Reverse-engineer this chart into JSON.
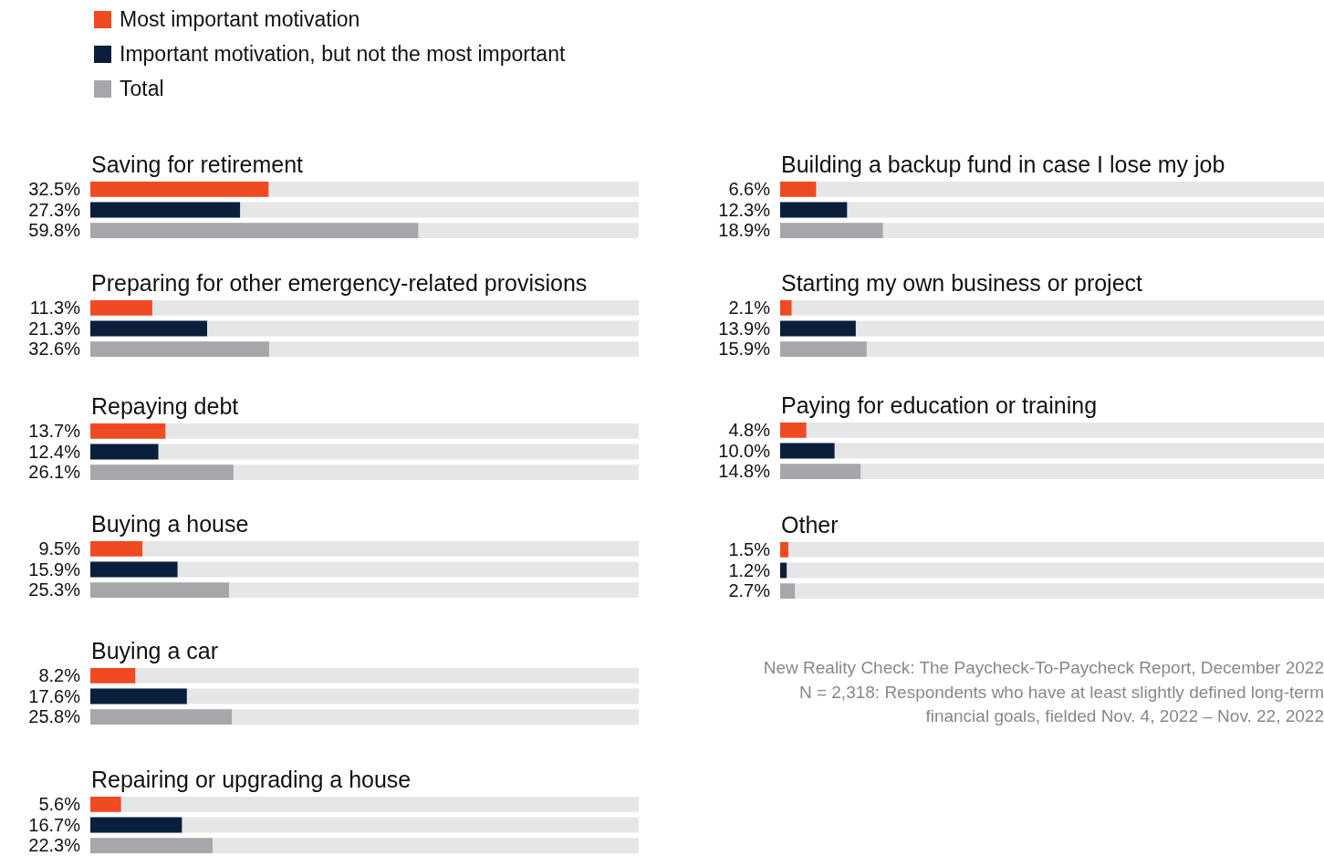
{
  "chart_data": [
    {
      "type": "bar",
      "orientation": "horizontal",
      "title": "Saving for retirement",
      "categories": [
        null
      ],
      "xlim": [
        0,
        100
      ],
      "legend": "top left",
      "series": [
        {
          "name": "Most important motivation",
          "color": "#f04a23",
          "values": [
            32.5
          ],
          "value_labels": [
            "32.5%"
          ]
        },
        {
          "name": "Important motivation, but not the most important",
          "color": "#0a1f3c",
          "values": [
            27.3
          ],
          "value_labels": [
            "27.3%"
          ]
        },
        {
          "name": "Total",
          "color": "#a7a7ab",
          "values": [
            59.8
          ],
          "value_labels": [
            "59.8%"
          ]
        }
      ]
    },
    {
      "type": "bar",
      "orientation": "horizontal",
      "title": "Building a backup fund in case I lose my job",
      "categories": [
        null
      ],
      "xlim": [
        0,
        100
      ],
      "series": [
        {
          "color": "#f04a23",
          "values": [
            6.6
          ],
          "value_labels": [
            "6.6%"
          ]
        },
        {
          "color": "#0a1f3c",
          "values": [
            12.3
          ],
          "value_labels": [
            "12.3%"
          ]
        },
        {
          "color": "#a7a7ab",
          "values": [
            18.9
          ],
          "value_labels": [
            "18.9%"
          ]
        }
      ]
    },
    {
      "type": "bar",
      "orientation": "horizontal",
      "title": "Preparing for other emergency-related provisions",
      "categories": [
        null
      ],
      "xlim": [
        0,
        100
      ],
      "series": [
        {
          "color": "#f04a23",
          "values": [
            11.3
          ],
          "value_labels": [
            "11.3%"
          ]
        },
        {
          "color": "#0a1f3c",
          "values": [
            21.3
          ],
          "value_labels": [
            "21.3%"
          ]
        },
        {
          "color": "#a7a7ab",
          "values": [
            32.6
          ],
          "value_labels": [
            "32.6%"
          ]
        }
      ]
    },
    {
      "type": "bar",
      "orientation": "horizontal",
      "title": "Starting my own business or project",
      "categories": [
        null
      ],
      "xlim": [
        0,
        100
      ],
      "series": [
        {
          "color": "#f04a23",
          "values": [
            2.1
          ],
          "value_labels": [
            "2.1%"
          ]
        },
        {
          "color": "#0a1f3c",
          "values": [
            13.9
          ],
          "value_labels": [
            "13.9%"
          ]
        },
        {
          "color": "#a7a7ab",
          "values": [
            15.9
          ],
          "value_labels": [
            "15.9%"
          ]
        }
      ]
    },
    {
      "type": "bar",
      "orientation": "horizontal",
      "title": "Repaying debt",
      "categories": [
        null
      ],
      "xlim": [
        0,
        100
      ],
      "series": [
        {
          "color": "#f04a23",
          "values": [
            13.7
          ],
          "value_labels": [
            "13.7%"
          ]
        },
        {
          "color": "#0a1f3c",
          "values": [
            12.4
          ],
          "value_labels": [
            "12.4%"
          ]
        },
        {
          "color": "#a7a7ab",
          "values": [
            26.1
          ],
          "value_labels": [
            "26.1%"
          ]
        }
      ]
    },
    {
      "type": "bar",
      "orientation": "horizontal",
      "title": "Paying for education or training",
      "categories": [
        null
      ],
      "xlim": [
        0,
        100
      ],
      "series": [
        {
          "color": "#f04a23",
          "values": [
            4.8
          ],
          "value_labels": [
            "4.8%"
          ]
        },
        {
          "color": "#0a1f3c",
          "values": [
            10.0
          ],
          "value_labels": [
            "10.0%"
          ]
        },
        {
          "color": "#a7a7ab",
          "values": [
            14.8
          ],
          "value_labels": [
            "14.8%"
          ]
        }
      ]
    },
    {
      "type": "bar",
      "orientation": "horizontal",
      "title": "Buying a house",
      "categories": [
        null
      ],
      "xlim": [
        0,
        100
      ],
      "series": [
        {
          "color": "#f04a23",
          "values": [
            9.5
          ],
          "value_labels": [
            "9.5%"
          ]
        },
        {
          "color": "#0a1f3c",
          "values": [
            15.9
          ],
          "value_labels": [
            "15.9%"
          ]
        },
        {
          "color": "#a7a7ab",
          "values": [
            25.3
          ],
          "value_labels": [
            "25.3%"
          ]
        }
      ]
    },
    {
      "type": "bar",
      "orientation": "horizontal",
      "title": "Other",
      "categories": [
        null
      ],
      "xlim": [
        0,
        100
      ],
      "annotations": [
        "New Reality Check: The Paycheck-To-Paycheck Report, December 2022",
        "N = 2,318: Respondents who have at least slightly defined long-term financial goals, fielded Nov. 4, 2022 – Nov. 22, 2022"
      ],
      "series": [
        {
          "color": "#f04a23",
          "values": [
            1.5
          ],
          "value_labels": [
            "1.5%"
          ]
        },
        {
          "color": "#0a1f3c",
          "values": [
            1.2
          ],
          "value_labels": [
            "1.2%"
          ]
        },
        {
          "color": "#a7a7ab",
          "values": [
            2.7
          ],
          "value_labels": [
            "2.7%"
          ]
        }
      ]
    },
    {
      "type": "bar",
      "orientation": "horizontal",
      "title": "Buying a car",
      "categories": [
        null
      ],
      "xlim": [
        0,
        100
      ],
      "series": [
        {
          "color": "#f04a23",
          "values": [
            8.2
          ],
          "value_labels": [
            "8.2%"
          ]
        },
        {
          "color": "#0a1f3c",
          "values": [
            17.6
          ],
          "value_labels": [
            "17.6%"
          ]
        },
        {
          "color": "#a7a7ab",
          "values": [
            25.8
          ],
          "value_labels": [
            "25.8%"
          ]
        }
      ]
    },
    {
      "type": "bar",
      "orientation": "horizontal",
      "title": "Repairing or upgrading a house",
      "categories": [
        null
      ],
      "xlim": [
        0,
        100
      ],
      "series": [
        {
          "color": "#f04a23",
          "values": [
            5.6
          ],
          "value_labels": [
            "5.6%"
          ]
        },
        {
          "color": "#0a1f3c",
          "values": [
            16.7
          ],
          "value_labels": [
            "16.7%"
          ]
        },
        {
          "color": "#a7a7ab",
          "values": [
            22.3
          ],
          "value_labels": [
            "22.3%"
          ]
        }
      ]
    }
  ]
}
